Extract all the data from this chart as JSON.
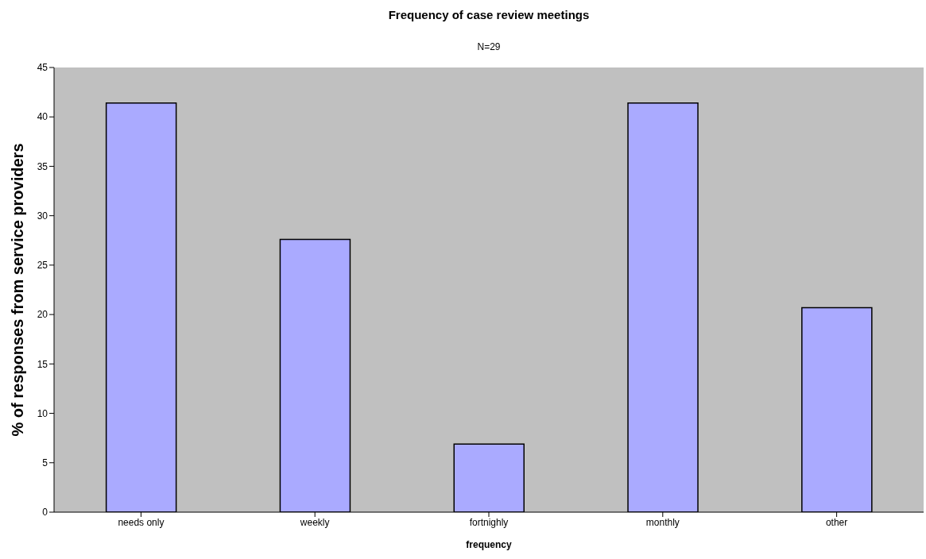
{
  "chart_data": {
    "type": "bar",
    "title": "Frequency of case review meetings",
    "subtitle": "N=29",
    "xlabel": "frequency",
    "ylabel": "%  of responses from service providers",
    "categories": [
      "needs only",
      "weekly",
      "fortnighly",
      "monthly",
      "other"
    ],
    "values": [
      41.4,
      27.6,
      6.9,
      41.4,
      20.7
    ],
    "color": "#aaaaff",
    "ylim": [
      0,
      45
    ],
    "yticks": [
      0,
      5,
      10,
      15,
      20,
      25,
      30,
      35,
      40,
      45
    ],
    "grid": false,
    "legend": false
  }
}
